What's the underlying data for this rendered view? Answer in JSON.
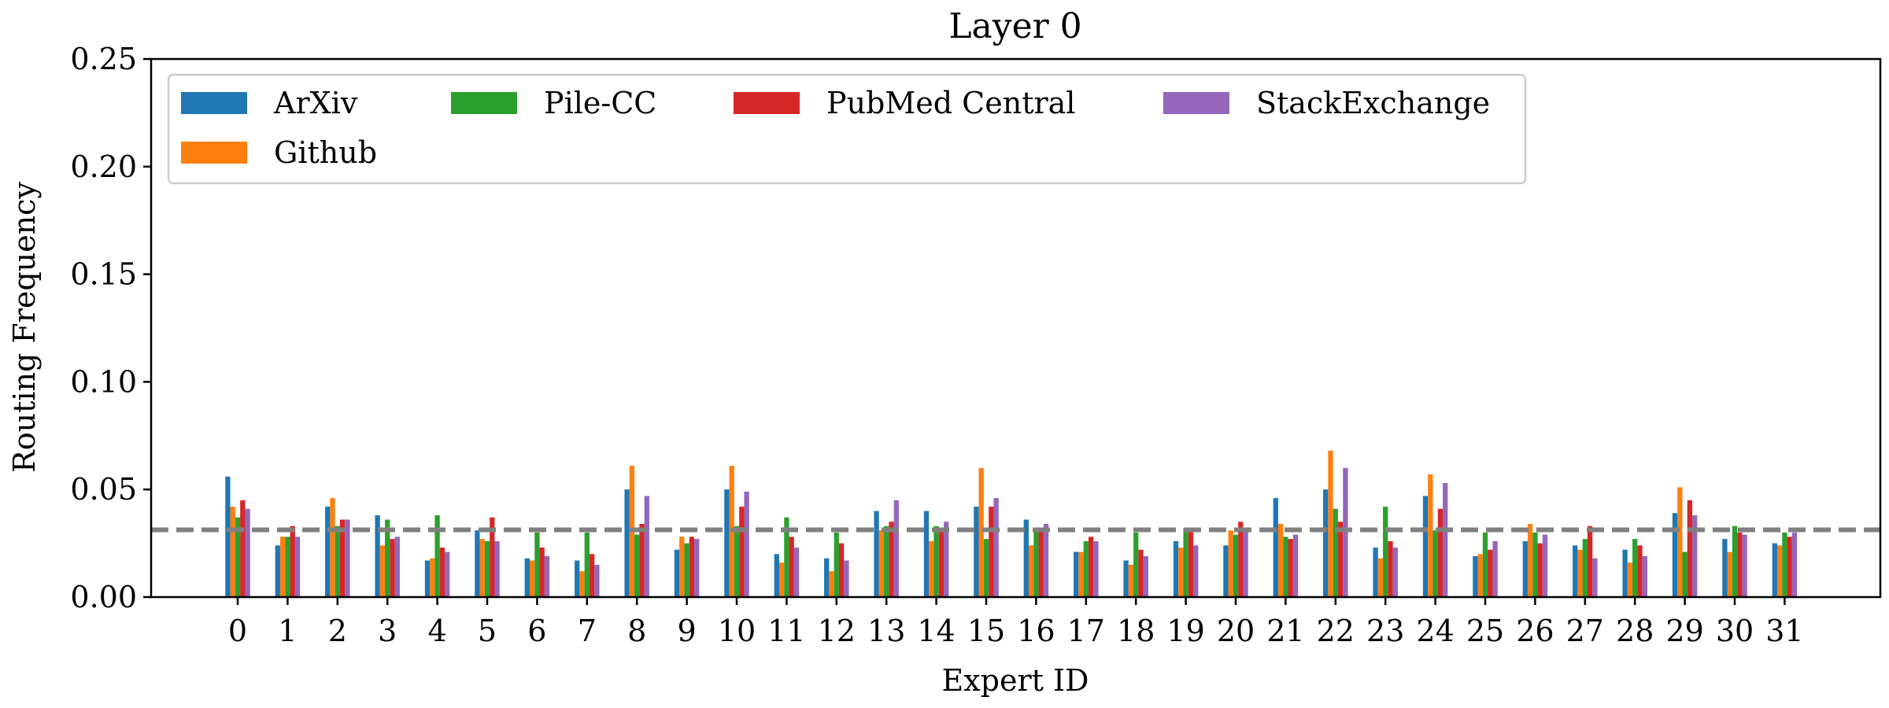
{
  "chart_data": {
    "type": "bar",
    "title": "Layer 0",
    "xlabel": "Expert ID",
    "ylabel": "Routing Frequency",
    "ylim": [
      0,
      0.25
    ],
    "yticks": [
      "0.00",
      "0.05",
      "0.10",
      "0.15",
      "0.20",
      "0.25"
    ],
    "categories": [
      "0",
      "1",
      "2",
      "3",
      "4",
      "5",
      "6",
      "7",
      "8",
      "9",
      "10",
      "11",
      "12",
      "13",
      "14",
      "15",
      "16",
      "17",
      "18",
      "19",
      "20",
      "21",
      "22",
      "23",
      "24",
      "25",
      "26",
      "27",
      "28",
      "29",
      "30",
      "31"
    ],
    "reference_line": 0.03125,
    "grid": false,
    "legend_position": "top-left",
    "series": [
      {
        "name": "ArXiv",
        "color": "#1f77b4",
        "values": [
          0.056,
          0.024,
          0.042,
          0.038,
          0.017,
          0.031,
          0.018,
          0.017,
          0.05,
          0.022,
          0.05,
          0.02,
          0.018,
          0.04,
          0.04,
          0.042,
          0.036,
          0.021,
          0.017,
          0.026,
          0.024,
          0.046,
          0.05,
          0.023,
          0.047,
          0.019,
          0.026,
          0.024,
          0.022,
          0.039,
          0.027,
          0.025
        ]
      },
      {
        "name": "Github",
        "color": "#ff7f0e",
        "values": [
          0.042,
          0.028,
          0.046,
          0.024,
          0.018,
          0.027,
          0.017,
          0.012,
          0.061,
          0.028,
          0.061,
          0.016,
          0.012,
          0.031,
          0.026,
          0.06,
          0.024,
          0.021,
          0.015,
          0.023,
          0.031,
          0.034,
          0.068,
          0.018,
          0.057,
          0.02,
          0.034,
          0.022,
          0.016,
          0.051,
          0.021,
          0.024
        ]
      },
      {
        "name": "Pile-CC",
        "color": "#2ca02c",
        "values": [
          0.037,
          0.028,
          0.033,
          0.036,
          0.038,
          0.026,
          0.03,
          0.03,
          0.029,
          0.025,
          0.033,
          0.037,
          0.03,
          0.033,
          0.033,
          0.027,
          0.032,
          0.026,
          0.03,
          0.032,
          0.029,
          0.028,
          0.041,
          0.042,
          0.031,
          0.03,
          0.03,
          0.027,
          0.027,
          0.021,
          0.033,
          0.03
        ]
      },
      {
        "name": "PubMed Central",
        "color": "#d62728",
        "values": [
          0.045,
          0.033,
          0.036,
          0.027,
          0.023,
          0.037,
          0.023,
          0.02,
          0.034,
          0.028,
          0.042,
          0.028,
          0.025,
          0.035,
          0.031,
          0.042,
          0.031,
          0.028,
          0.022,
          0.031,
          0.035,
          0.027,
          0.035,
          0.026,
          0.041,
          0.022,
          0.025,
          0.033,
          0.024,
          0.045,
          0.03,
          0.028
        ]
      },
      {
        "name": "StackExchange",
        "color": "#9467bd",
        "values": [
          0.041,
          0.028,
          0.036,
          0.028,
          0.021,
          0.026,
          0.019,
          0.015,
          0.047,
          0.027,
          0.049,
          0.023,
          0.017,
          0.045,
          0.035,
          0.046,
          0.034,
          0.026,
          0.019,
          0.024,
          0.031,
          0.029,
          0.06,
          0.023,
          0.053,
          0.026,
          0.029,
          0.018,
          0.019,
          0.038,
          0.029,
          0.03
        ]
      }
    ]
  }
}
